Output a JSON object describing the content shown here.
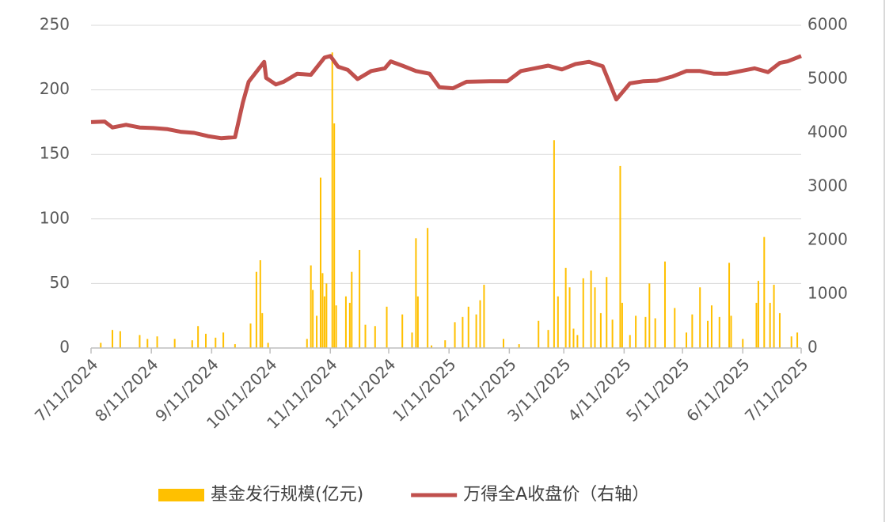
{
  "chart_data": {
    "type": "bar-line",
    "xlim": [
      "7/11/2024",
      "7/11/2025"
    ],
    "xticks": [
      "7/11/2024",
      "8/11/2024",
      "9/11/2024",
      "10/11/2024",
      "11/11/2024",
      "12/11/2024",
      "1/11/2025",
      "2/11/2025",
      "3/11/2025",
      "4/11/2025",
      "5/11/2025",
      "6/11/2025",
      "7/11/2025"
    ],
    "ylim": [
      0,
      250
    ],
    "yticks": [
      0,
      50,
      100,
      150,
      200,
      250
    ],
    "y2lim": [
      0,
      6000
    ],
    "y2ticks": [
      0,
      1000,
      2000,
      3000,
      4000,
      5000,
      6000
    ],
    "grid": true,
    "legend": "bottom",
    "series": [
      {
        "name": "基金发行规模(亿元)",
        "type": "bar",
        "color": "#ffc000",
        "x": [
          "7/16/2024",
          "7/22/2024",
          "7/26/2024",
          "8/5/2024",
          "8/9/2024",
          "8/14/2024",
          "8/23/2024",
          "9/1/2024",
          "9/4/2024",
          "9/8/2024",
          "9/13/2024",
          "9/17/2024",
          "9/23/2024",
          "10/1/2024",
          "10/4/2024",
          "10/6/2024",
          "10/7/2024",
          "10/10/2024",
          "10/30/2024",
          "11/1/2024",
          "11/2/2024",
          "11/4/2024",
          "11/6/2024",
          "11/7/2024",
          "11/8/2024",
          "11/9/2024",
          "11/12/2024",
          "11/13/2024",
          "11/14/2024",
          "11/19/2024",
          "11/21/2024",
          "11/22/2024",
          "11/26/2024",
          "11/29/2024",
          "12/4/2024",
          "12/10/2024",
          "12/18/2024",
          "12/23/2024",
          "12/25/2024",
          "12/26/2024",
          "12/31/2024",
          "1/2/2025",
          "1/9/2025",
          "1/14/2025",
          "1/18/2025",
          "1/21/2025",
          "1/25/2025",
          "1/27/2025",
          "1/29/2025",
          "2/8/2025",
          "2/16/2025",
          "2/26/2025",
          "3/3/2025",
          "3/6/2025",
          "3/8/2025",
          "3/12/2025",
          "3/14/2025",
          "3/16/2025",
          "3/18/2025",
          "3/21/2025",
          "3/25/2025",
          "3/27/2025",
          "3/30/2025",
          "4/2/2025",
          "4/5/2025",
          "4/9/2025",
          "4/10/2025",
          "4/14/2025",
          "4/17/2025",
          "4/22/2025",
          "4/24/2025",
          "4/27/2025",
          "5/2/2025",
          "5/7/2025",
          "5/13/2025",
          "5/16/2025",
          "5/20/2025",
          "5/24/2025",
          "5/26/2025",
          "5/30/2025",
          "6/4/2025",
          "6/5/2025",
          "6/11/2025",
          "6/18/2025",
          "6/19/2025",
          "6/22/2025",
          "6/25/2025",
          "6/27/2025",
          "6/30/2025",
          "7/6/2025",
          "7/9/2025"
        ],
        "values": [
          4,
          14,
          13,
          10,
          7,
          9,
          7,
          6,
          17,
          11,
          8,
          12,
          3,
          19,
          59,
          68,
          27,
          4,
          7,
          64,
          45,
          25,
          132,
          58,
          40,
          50,
          229,
          174,
          33,
          40,
          35,
          59,
          76,
          18,
          17,
          32,
          26,
          12,
          85,
          40,
          93,
          2,
          6,
          20,
          24,
          32,
          26,
          37,
          49,
          7,
          3,
          21,
          14,
          161,
          40,
          62,
          47,
          15,
          10,
          54,
          60,
          47,
          27,
          55,
          22,
          141,
          35,
          10,
          25,
          24,
          50,
          23,
          67,
          31,
          12,
          26,
          47,
          21,
          33,
          24,
          66,
          25,
          7,
          35,
          52,
          86,
          35,
          49,
          27,
          9,
          12
        ]
      },
      {
        "name": "万得全A收盘价（右轴）",
        "type": "line",
        "axis": "y2",
        "color": "#c0504d",
        "x": [
          "7/11/2024",
          "7/18/2024",
          "7/22/2024",
          "7/29/2024",
          "8/5/2024",
          "8/12/2024",
          "8/19/2024",
          "8/26/2024",
          "9/2/2024",
          "9/9/2024",
          "9/16/2024",
          "9/23/2024",
          "9/27/2024",
          "9/30/2024",
          "10/8/2024",
          "10/9/2024",
          "10/14/2024",
          "10/18/2024",
          "10/25/2024",
          "11/1/2024",
          "11/8/2024",
          "11/11/2024",
          "11/15/2024",
          "11/20/2024",
          "11/25/2024",
          "12/2/2024",
          "12/9/2024",
          "12/12/2024",
          "12/18/2024",
          "12/25/2024",
          "1/1/2025",
          "1/6/2025",
          "1/13/2025",
          "1/20/2025",
          "2/1/2025",
          "2/10/2025",
          "2/17/2025",
          "2/24/2025",
          "3/3/2025",
          "3/10/2025",
          "3/17/2025",
          "3/24/2025",
          "3/31/2025",
          "4/7/2025",
          "4/14/2025",
          "4/21/2025",
          "4/28/2025",
          "5/6/2025",
          "5/13/2025",
          "5/20/2025",
          "5/27/2025",
          "6/3/2025",
          "6/10/2025",
          "6/17/2025",
          "6/24/2025",
          "6/30/2025",
          "7/4/2025",
          "7/11/2025"
        ],
        "values": [
          4200,
          4210,
          4100,
          4150,
          4100,
          4090,
          4070,
          4020,
          4000,
          3940,
          3900,
          3920,
          4560,
          4950,
          5320,
          5020,
          4900,
          4950,
          5100,
          5080,
          5400,
          5430,
          5230,
          5170,
          5000,
          5150,
          5200,
          5330,
          5250,
          5150,
          5100,
          4850,
          4830,
          4950,
          4960,
          4960,
          5150,
          5200,
          5250,
          5180,
          5280,
          5320,
          5240,
          4620,
          4920,
          4960,
          4970,
          5050,
          5150,
          5150,
          5100,
          5100,
          5150,
          5200,
          5130,
          5300,
          5330,
          5430
        ]
      }
    ]
  }
}
